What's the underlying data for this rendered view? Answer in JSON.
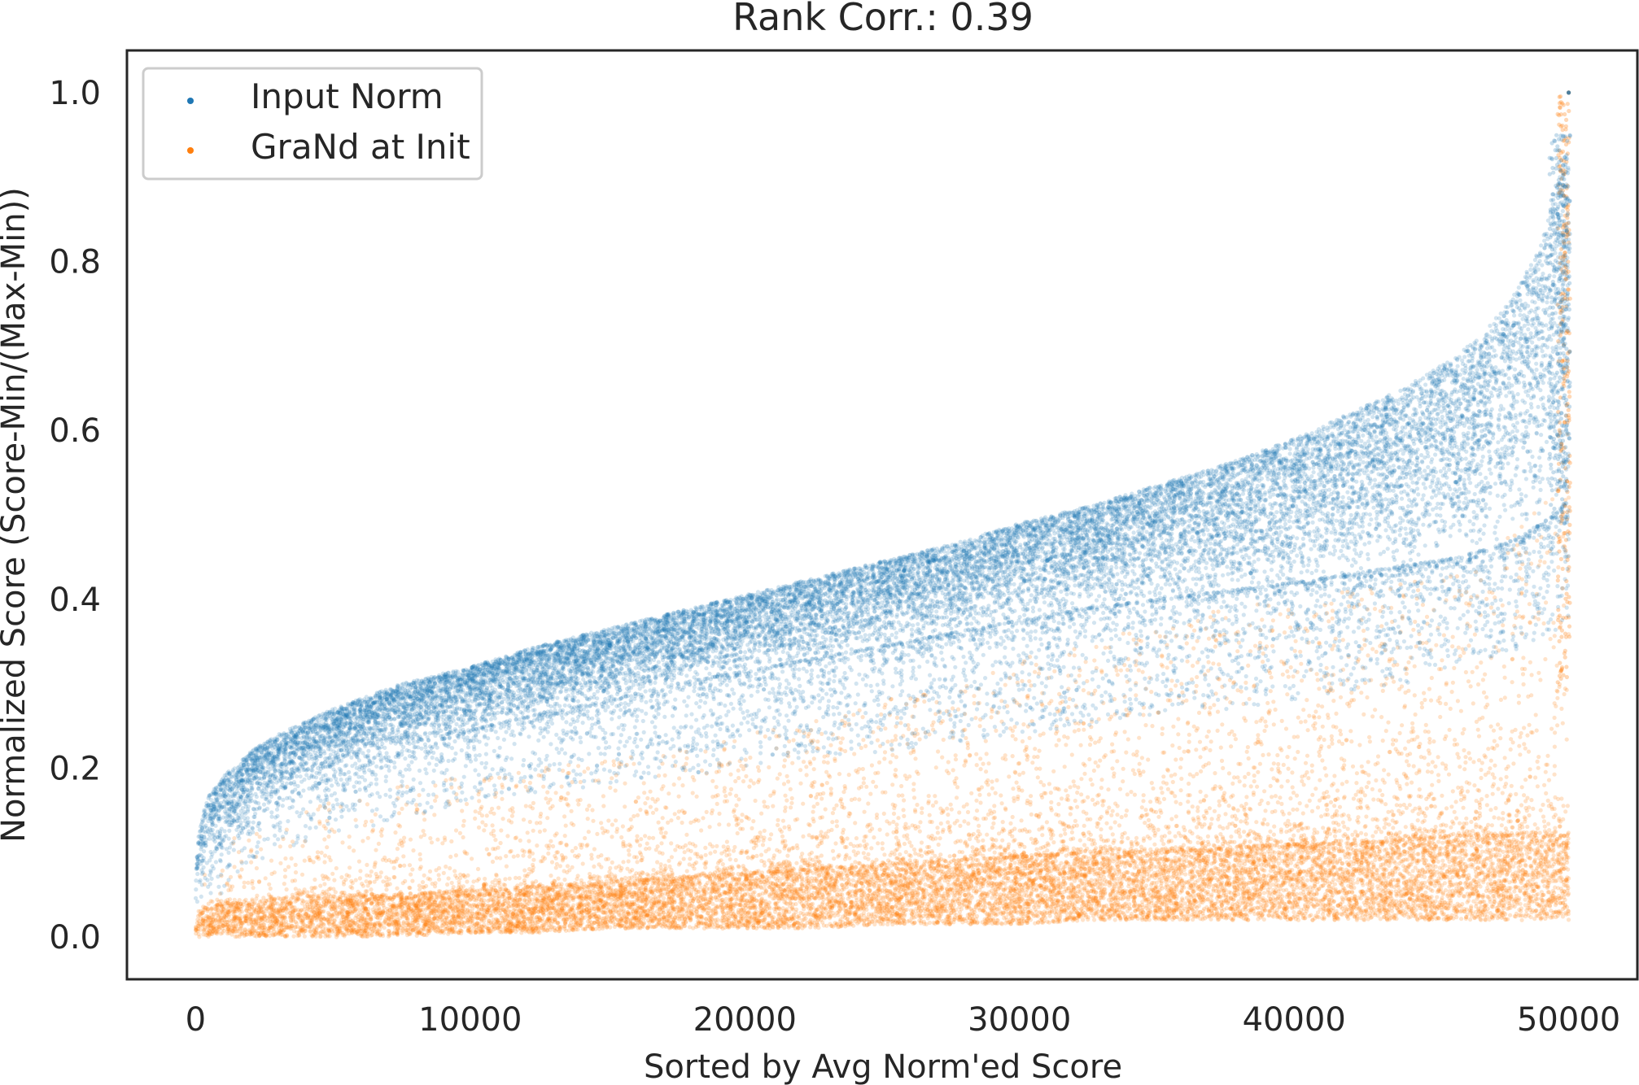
{
  "chart_data": {
    "type": "scatter",
    "title": "Rank Corr.: 0.39",
    "xlabel": "Sorted by Avg Norm'ed Score",
    "ylabel": "Normalized Score (Score-Min/(Max-Min))",
    "xlim": [
      -2500,
      52500
    ],
    "ylim": [
      -0.05,
      1.05
    ],
    "xticks": [
      0,
      10000,
      20000,
      30000,
      40000,
      50000
    ],
    "xtick_labels": [
      "0",
      "10000",
      "20000",
      "30000",
      "40000",
      "50000"
    ],
    "yticks": [
      0.0,
      0.2,
      0.4,
      0.6,
      0.8,
      1.0
    ],
    "ytick_labels": [
      "0.0",
      "0.2",
      "0.4",
      "0.6",
      "0.8",
      "1.0"
    ],
    "grid": false,
    "legend": {
      "position": "top-left",
      "entries": [
        "Input Norm",
        "GraNd at Init"
      ]
    },
    "series": [
      {
        "name": "Input Norm",
        "color": "#1f77b4",
        "x": [
          0,
          100,
          300,
          500,
          1000,
          2000,
          3000,
          5000,
          7500,
          10000,
          12500,
          15000,
          17500,
          20000,
          22500,
          25000,
          27500,
          30000,
          32500,
          35000,
          37500,
          40000,
          42000,
          44000,
          46000,
          47000,
          48000,
          49000,
          49500,
          50000
        ],
        "y_upper": [
          0.08,
          0.12,
          0.15,
          0.17,
          0.19,
          0.22,
          0.24,
          0.27,
          0.3,
          0.32,
          0.345,
          0.365,
          0.385,
          0.405,
          0.425,
          0.445,
          0.465,
          0.49,
          0.51,
          0.535,
          0.56,
          0.59,
          0.62,
          0.65,
          0.69,
          0.72,
          0.76,
          0.82,
          0.88,
          0.94
        ],
        "y_lower": [
          0.03,
          0.05,
          0.07,
          0.08,
          0.1,
          0.14,
          0.16,
          0.19,
          0.22,
          0.245,
          0.265,
          0.28,
          0.3,
          0.315,
          0.33,
          0.345,
          0.36,
          0.375,
          0.39,
          0.4,
          0.41,
          0.42,
          0.43,
          0.44,
          0.45,
          0.46,
          0.47,
          0.49,
          0.5,
          0.52
        ],
        "y_min": [
          0.0,
          0.02,
          0.03,
          0.04,
          0.05,
          0.08,
          0.1,
          0.12,
          0.14,
          0.16,
          0.17,
          0.18,
          0.19,
          0.2,
          0.21,
          0.22,
          0.23,
          0.24,
          0.25,
          0.26,
          0.27,
          0.28,
          0.29,
          0.3,
          0.32,
          0.33,
          0.34,
          0.35,
          0.36,
          0.37
        ],
        "y_max_point": 1.0
      },
      {
        "name": "GraNd at Init",
        "color": "#ff7f0e",
        "x": [
          0,
          100,
          300,
          500,
          1000,
          2000,
          3000,
          5000,
          7500,
          10000,
          12500,
          15000,
          17500,
          20000,
          22500,
          25000,
          27500,
          30000,
          32500,
          35000,
          37500,
          40000,
          42000,
          44000,
          46000,
          47000,
          48000,
          49000,
          49500,
          50000
        ],
        "y_core_upper": [
          0.02,
          0.03,
          0.035,
          0.035,
          0.04,
          0.04,
          0.045,
          0.05,
          0.05,
          0.055,
          0.06,
          0.065,
          0.07,
          0.075,
          0.08,
          0.085,
          0.09,
          0.095,
          0.1,
          0.1,
          0.105,
          0.11,
          0.11,
          0.115,
          0.12,
          0.12,
          0.12,
          0.12,
          0.12,
          0.12
        ],
        "y_core_lower": [
          0.0,
          0.0,
          0.0,
          0.0,
          0.0,
          0.0,
          0.0,
          0.0,
          0.0,
          0.005,
          0.005,
          0.01,
          0.01,
          0.01,
          0.01,
          0.015,
          0.015,
          0.015,
          0.02,
          0.02,
          0.02,
          0.02,
          0.02,
          0.02,
          0.02,
          0.02,
          0.02,
          0.02,
          0.02,
          0.02
        ],
        "y_spread_max": [
          0.05,
          0.08,
          0.1,
          0.1,
          0.11,
          0.13,
          0.14,
          0.16,
          0.18,
          0.19,
          0.2,
          0.21,
          0.22,
          0.24,
          0.26,
          0.28,
          0.3,
          0.33,
          0.35,
          0.37,
          0.39,
          0.4,
          0.41,
          0.42,
          0.43,
          0.45,
          0.48,
          0.52,
          0.55,
          0.6
        ],
        "y_max_point": 1.0
      }
    ]
  }
}
